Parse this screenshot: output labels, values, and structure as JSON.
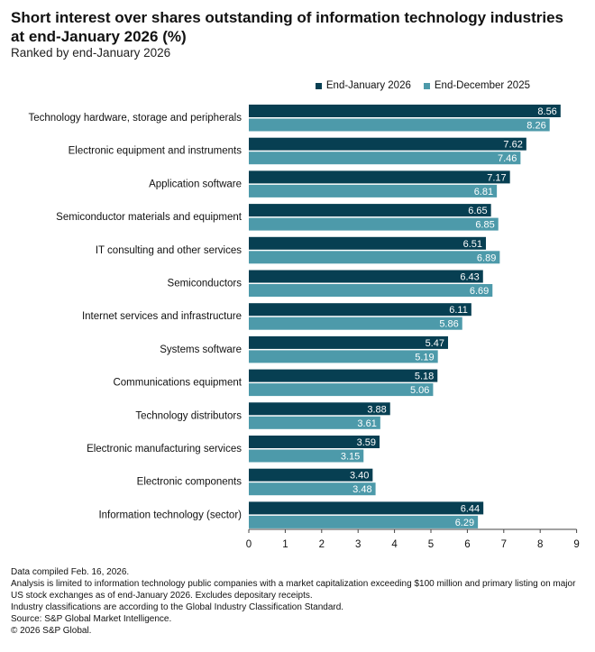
{
  "colors": {
    "jan": "#073f52",
    "dec": "#4d9aaa",
    "axis": "#444444"
  },
  "chart_data": {
    "type": "bar",
    "orientation": "horizontal",
    "title": "Short interest over shares outstanding of information technology industries at end-January 2026 (%)",
    "subtitle": "Ranked by end-January 2026",
    "xlim": [
      0,
      9
    ],
    "xticks": [
      "0",
      "1",
      "2",
      "3",
      "4",
      "5",
      "6",
      "7",
      "8",
      "9"
    ],
    "categories": [
      "Technology hardware, storage and peripherals",
      "Electronic equipment and instruments",
      "Application software",
      "Semiconductor materials and equipment",
      "IT consulting and other services",
      "Semiconductors",
      "Internet services and infrastructure",
      "Systems software",
      "Communications equipment",
      "Technology distributors",
      "Electronic manufacturing services",
      "Electronic components",
      "Information technology (sector)"
    ],
    "series": [
      {
        "name": "End-January 2026",
        "values": [
          8.56,
          7.62,
          7.17,
          6.65,
          6.51,
          6.43,
          6.11,
          5.47,
          5.18,
          3.88,
          3.59,
          3.4,
          6.44
        ],
        "labels": [
          "8.56",
          "7.62",
          "7.17",
          "6.65",
          "6.51",
          "6.43",
          "6.11",
          "5.47",
          "5.18",
          "3.88",
          "3.59",
          "3.40",
          "6.44"
        ]
      },
      {
        "name": "End-December 2025",
        "values": [
          8.26,
          7.46,
          6.81,
          6.85,
          6.89,
          6.69,
          5.86,
          5.19,
          5.06,
          3.61,
          3.15,
          3.48,
          6.29
        ],
        "labels": [
          "8.26",
          "7.46",
          "6.81",
          "6.85",
          "6.89",
          "6.69",
          "5.86",
          "5.19",
          "5.06",
          "3.61",
          "3.15",
          "3.48",
          "6.29"
        ]
      }
    ],
    "legend_position": "top-right"
  },
  "footer": {
    "line1": "Data compiled Feb. 16, 2026.",
    "line2": "Analysis is limited to information technology public companies with a market capitalization exceeding $100 million and primary listing on major US stock exchanges as of end-January 2026. Excludes depositary receipts.",
    "line3": "Industry classifications are according to the Global Industry Classification Standard.",
    "line4": "Source: S&P Global Market Intelligence.",
    "line5": "© 2026 S&P Global."
  }
}
